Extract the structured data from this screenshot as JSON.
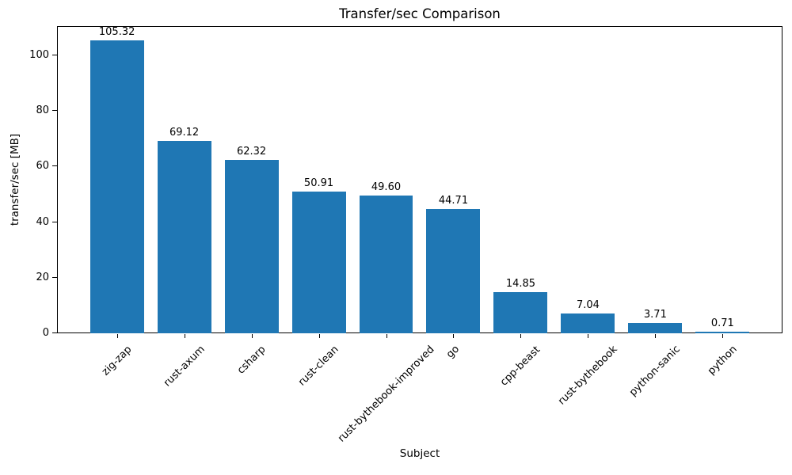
{
  "chart_data": {
    "type": "bar",
    "title": "Transfer/sec Comparison",
    "xlabel": "Subject",
    "ylabel": "transfer/sec [MB]",
    "categories": [
      "zig-zap",
      "rust-axum",
      "csharp",
      "rust-clean",
      "rust-bythebook-improved",
      "go",
      "cpp-beast",
      "rust-bythebook",
      "python-sanic",
      "python"
    ],
    "values": [
      105.32,
      69.12,
      62.32,
      50.91,
      49.6,
      44.71,
      14.85,
      7.04,
      3.71,
      0.71
    ],
    "value_label_decimals": 2,
    "yticks": [
      0,
      20,
      40,
      60,
      80,
      100
    ],
    "ylim": [
      0,
      110.59
    ],
    "bar_color": "#1f77b4",
    "grid": false,
    "legend": null,
    "x_tick_label_rotation_deg": 45
  }
}
